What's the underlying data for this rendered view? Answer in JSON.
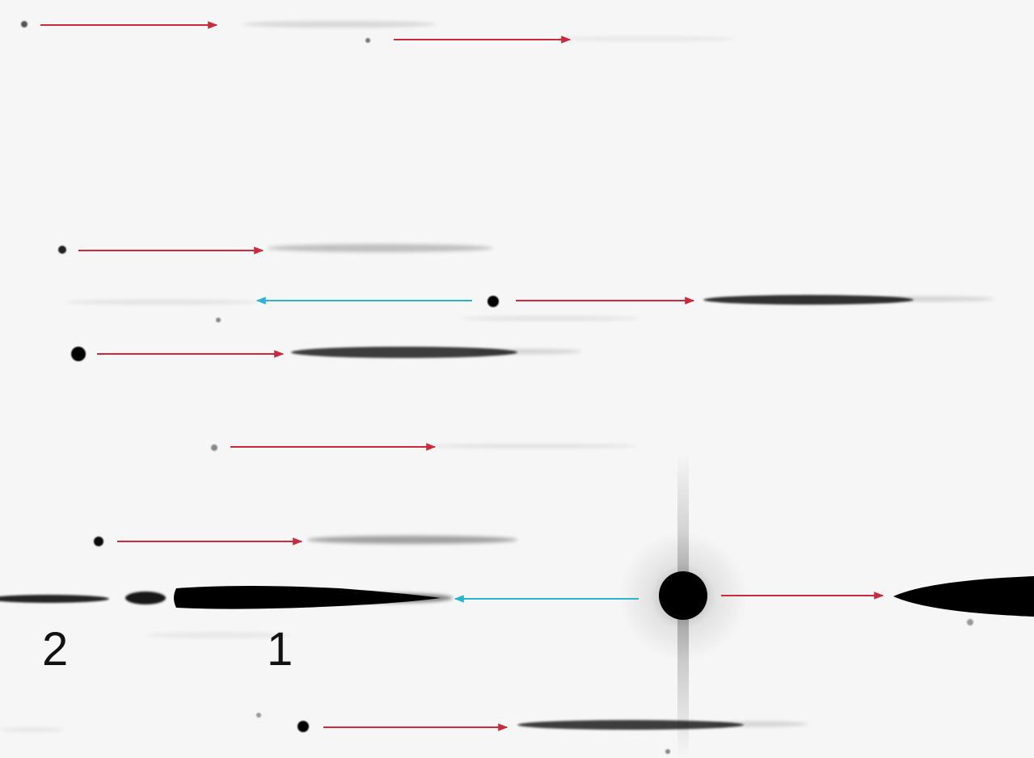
{
  "figure": {
    "background_color": "#f6f6f6",
    "spot_color": "#000000",
    "red_arrow_color": "#cc2a3a",
    "blue_arrow_color": "#2bb3d6"
  },
  "labels": {
    "order_2": "2",
    "order_1": "1"
  }
}
